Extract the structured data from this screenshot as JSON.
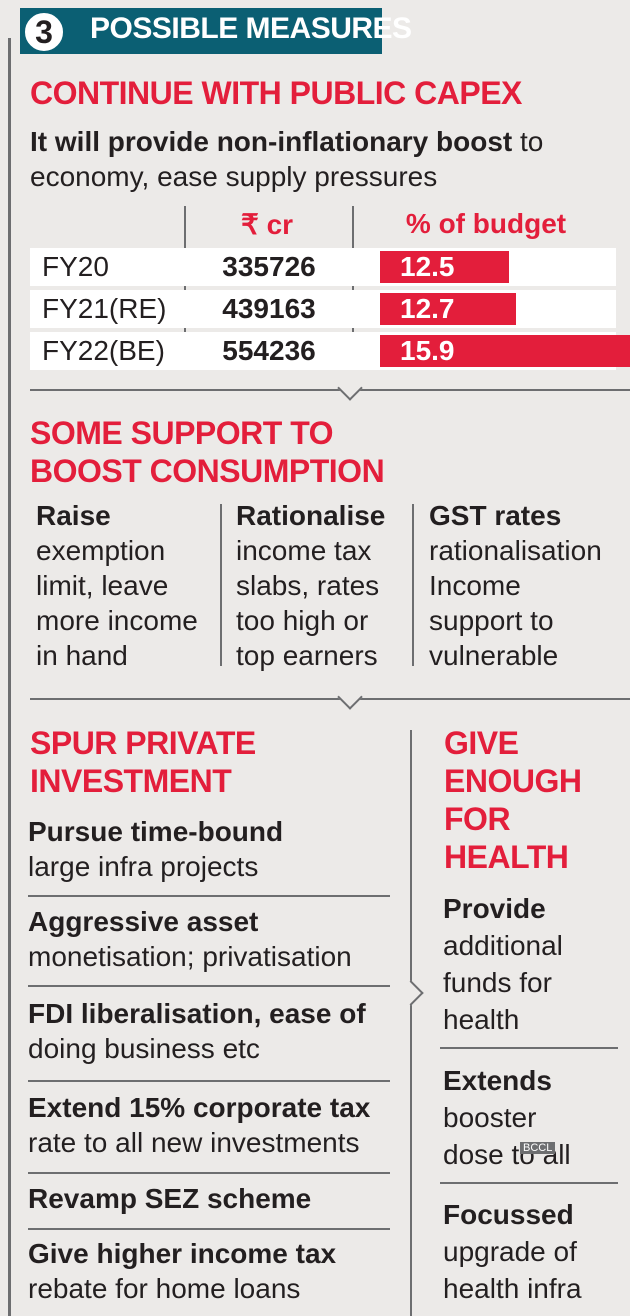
{
  "header": {
    "number": "3",
    "title": "POSSIBLE MEASURES"
  },
  "section1": {
    "title": "CONTINUE WITH PUBLIC CAPEX",
    "desc_bold": "It will provide non-inflationary boost",
    "desc_rest_1": " to",
    "desc_rest_2": "economy, ease supply pressures",
    "col_amount": "₹ cr",
    "col_pct": "% of budget",
    "rows": [
      {
        "label": "FY20",
        "amount": "335726",
        "pct_label": "12.5",
        "pct": 12.5
      },
      {
        "label": "FY21(RE)",
        "amount": "439163",
        "pct_label": "12.7",
        "pct": 12.7
      },
      {
        "label": "FY22(BE)",
        "amount": "554236",
        "pct_label": "15.9",
        "pct": 15.9
      }
    ]
  },
  "section2": {
    "title_1": "SOME SUPPORT TO",
    "title_2": "BOOST CONSUMPTION",
    "cols": [
      {
        "head": "Raise",
        "lines": [
          "exemption",
          "limit, leave",
          "more income",
          "in hand"
        ]
      },
      {
        "head": "Rationalise",
        "lines": [
          "income tax",
          "slabs, rates",
          "too high or",
          "top earners"
        ]
      },
      {
        "head": "GST rates",
        "lines": [
          "rationalisation",
          "Income",
          "support to",
          "vulnerable"
        ]
      }
    ]
  },
  "section3": {
    "title_1": "SPUR PRIVATE",
    "title_2": "INVESTMENT",
    "items": [
      {
        "bold": "Pursue time-bound",
        "rest": "large infra projects"
      },
      {
        "bold": "Aggressive asset",
        "rest": "monetisation; privatisation"
      },
      {
        "bold": "FDI liberalisation, ease of",
        "rest": "doing business etc"
      },
      {
        "bold": "Extend 15% corporate tax",
        "rest": "rate to all new investments"
      },
      {
        "bold": "Revamp SEZ scheme",
        "rest": ""
      },
      {
        "bold": "Give higher income tax",
        "rest": "rebate for home loans"
      }
    ]
  },
  "section4": {
    "title_lines": [
      "GIVE",
      "ENOUGH",
      "FOR",
      "HEALTH"
    ],
    "items": [
      {
        "bold": "Provide",
        "lines": [
          "additional",
          "funds for",
          "health"
        ]
      },
      {
        "bold": "Extends",
        "lines": [
          "booster",
          "dose to all"
        ]
      },
      {
        "bold": "Focussed",
        "lines": [
          "upgrade of",
          "health infra"
        ]
      }
    ]
  },
  "watermark": "BCCL",
  "colors": {
    "accent_red": "#e31e3b",
    "banner_teal": "#0b5f73",
    "rule_gray": "#6d6e70",
    "background": "#eceae8"
  }
}
